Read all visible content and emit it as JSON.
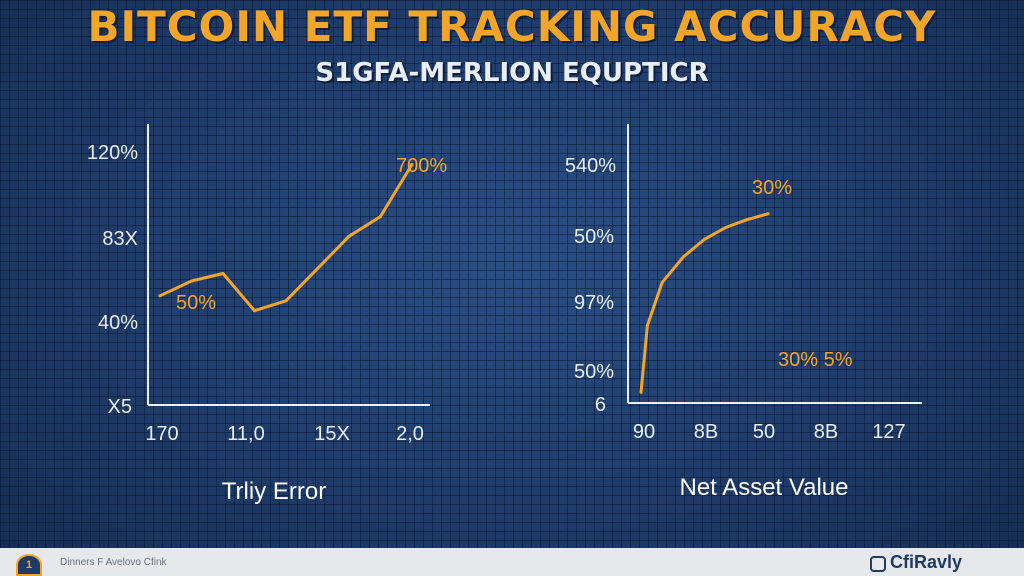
{
  "header": {
    "title": "BITCOIN ETF TRACKING ACCURACY",
    "subtitle": "S1GFA-MERLION EQUPTICR"
  },
  "colors": {
    "accent": "#f3a52a",
    "axis": "#e9eef7",
    "background": "#1f3e6e"
  },
  "chart_data": [
    {
      "type": "line",
      "title": "",
      "xlabel": "Trliy Error",
      "ylabel": "",
      "y_tick_labels": [
        "120%",
        "83X",
        "40%",
        "X5"
      ],
      "x_tick_labels": [
        "170",
        "11,0",
        "15X",
        "2,0"
      ],
      "x": [
        0,
        1,
        2,
        3,
        4,
        5,
        6,
        7,
        8
      ],
      "values": [
        42,
        48,
        51,
        36,
        40,
        53,
        66,
        74,
        95
      ],
      "ylim": [
        0,
        100
      ],
      "annotations": [
        "50%",
        "700%"
      ]
    },
    {
      "type": "line",
      "title": "",
      "xlabel": "Net Asset Value",
      "ylabel": "",
      "y_tick_labels": [
        "540%",
        "50%",
        "97%",
        "50%",
        "6"
      ],
      "x_tick_labels": [
        "90",
        "8B",
        "50",
        "8B",
        "127"
      ],
      "x": [
        0,
        0.3,
        1,
        2,
        3,
        4,
        5,
        6
      ],
      "values": [
        4,
        38,
        60,
        73,
        82,
        88,
        92,
        95
      ],
      "ylim": [
        0,
        100
      ],
      "annotations": [
        "30%",
        "30% 5%"
      ]
    }
  ],
  "footer": {
    "badge": "1",
    "left_text": "Dinners F Avelovo Cfink",
    "right_text": "CfiRavly"
  }
}
